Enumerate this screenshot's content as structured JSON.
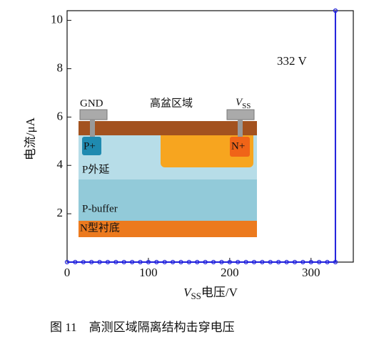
{
  "chart_data": {
    "type": "line",
    "x": [
      0,
      10,
      20,
      30,
      40,
      50,
      60,
      70,
      80,
      90,
      100,
      110,
      120,
      130,
      140,
      150,
      160,
      170,
      180,
      190,
      200,
      210,
      220,
      230,
      240,
      250,
      260,
      270,
      280,
      290,
      300,
      310,
      320,
      330,
      330
    ],
    "series": [
      {
        "color": "#1f1fdc",
        "values": [
          0,
          0,
          0,
          0,
          0,
          0,
          0,
          0,
          0,
          0,
          0,
          0,
          0,
          0,
          0,
          0,
          0,
          0,
          0,
          0,
          0,
          0,
          0,
          0,
          0,
          0,
          0,
          0,
          0,
          0,
          0,
          0,
          0,
          0,
          10.4
        ]
      }
    ],
    "xlim": [
      0,
      352
    ],
    "ylim": [
      0,
      10.4
    ],
    "xticks": [
      0,
      100,
      200,
      300
    ],
    "yticks": [
      2,
      4,
      6,
      8,
      10
    ],
    "ylabel": "电流/μA",
    "xlabel": {
      "main": "V",
      "sub": "SS",
      "rest": "电压/V"
    },
    "annotation": "332 V",
    "caption": "图 11　高测区域隔离结构击穿电压",
    "inset": {
      "title": "高盆区域",
      "gnd": "GND",
      "vss": {
        "main": "V",
        "sub": "SS"
      },
      "p_plus": "P+",
      "n_plus": "N+",
      "p_epi": "P外延",
      "p_buffer": "P-buffer",
      "n_sub": "N型衬底"
    }
  }
}
